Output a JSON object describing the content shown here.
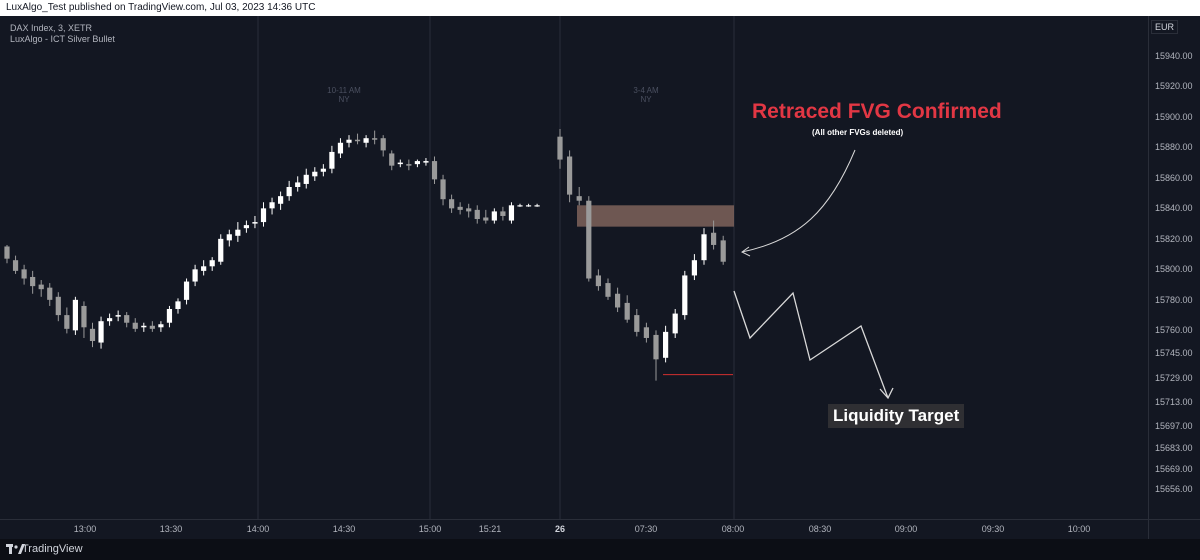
{
  "header": {
    "published_text": "LuxAlgo_Test published on TradingView.com, Jul 03, 2023 14:36 UTC"
  },
  "legend": {
    "symbol": "DAX Index, 3, XETR",
    "indicator": "LuxAlgo - ICT Silver Bullet"
  },
  "sessions": [
    {
      "time": "10-11 AM",
      "zone": "NY"
    },
    {
      "time": "3-4 AM",
      "zone": "NY"
    }
  ],
  "price_axis": {
    "currency": "EUR",
    "labels": [
      "15940.00",
      "15920.00",
      "15900.00",
      "15880.00",
      "15860.00",
      "15840.00",
      "15820.00",
      "15800.00",
      "15780.00",
      "15760.00",
      "15745.00",
      "15729.00",
      "15713.00",
      "15697.00",
      "15683.00",
      "15669.00",
      "15656.00"
    ]
  },
  "time_axis": {
    "labels": [
      "13:00",
      "13:30",
      "14:00",
      "14:30",
      "15:00",
      "15:21",
      "26",
      "07:30",
      "08:00",
      "08:30",
      "09:00",
      "09:30",
      "10:00"
    ],
    "bold_label": "26"
  },
  "annotations": {
    "fvg_title": "Retraced FVG Confirmed",
    "fvg_subtitle": "(All other FVGs deleted)",
    "liquidity_target": "Liquidity Target"
  },
  "footer": {
    "brand": "TradingView"
  },
  "colors": {
    "background": "#131722",
    "bull_candle": "#ffffff",
    "bear_candle": "#9a9a9a",
    "fvg_box": "#8d6e63",
    "fvg_title": "#e23744",
    "liquidity_line": "#d32f2f"
  },
  "chart_data": {
    "type": "candlestick",
    "price_range": [
      15648,
      15960
    ],
    "candles": [
      {
        "o": 15801,
        "h": 15802,
        "c": 15793,
        "l": 15790
      },
      {
        "o": 15792,
        "h": 15795,
        "c": 15785,
        "l": 15783
      },
      {
        "o": 15786,
        "h": 15789,
        "c": 15780,
        "l": 15776
      },
      {
        "o": 15781,
        "h": 15785,
        "c": 15775,
        "l": 15770
      },
      {
        "o": 15776,
        "h": 15779,
        "c": 15773,
        "l": 15768
      },
      {
        "o": 15774,
        "h": 15777,
        "c": 15766,
        "l": 15762
      },
      {
        "o": 15768,
        "h": 15771,
        "c": 15756,
        "l": 15752
      },
      {
        "o": 15756,
        "h": 15761,
        "c": 15747,
        "l": 15744
      },
      {
        "o": 15746,
        "h": 15768,
        "c": 15766,
        "l": 15743
      },
      {
        "o": 15762,
        "h": 15765,
        "c": 15748,
        "l": 15741
      },
      {
        "o": 15747,
        "h": 15751,
        "c": 15739,
        "l": 15735
      },
      {
        "o": 15738,
        "h": 15755,
        "c": 15752,
        "l": 15734
      },
      {
        "o": 15752,
        "h": 15757,
        "c": 15754,
        "l": 15749
      },
      {
        "o": 15755,
        "h": 15759,
        "c": 15756,
        "l": 15752
      },
      {
        "o": 15756,
        "h": 15758,
        "c": 15751,
        "l": 15748
      },
      {
        "o": 15751,
        "h": 15754,
        "c": 15747,
        "l": 15745
      },
      {
        "o": 15748,
        "h": 15751,
        "c": 15749,
        "l": 15745
      },
      {
        "o": 15749,
        "h": 15752,
        "c": 15747,
        "l": 15745
      },
      {
        "o": 15748,
        "h": 15752,
        "c": 15750,
        "l": 15745
      },
      {
        "o": 15751,
        "h": 15762,
        "c": 15760,
        "l": 15748
      },
      {
        "o": 15760,
        "h": 15767,
        "c": 15765,
        "l": 15757
      },
      {
        "o": 15766,
        "h": 15780,
        "c": 15778,
        "l": 15763
      },
      {
        "o": 15778,
        "h": 15789,
        "c": 15786,
        "l": 15775
      },
      {
        "o": 15785,
        "h": 15792,
        "c": 15788,
        "l": 15782
      },
      {
        "o": 15788,
        "h": 15794,
        "c": 15792,
        "l": 15785
      },
      {
        "o": 15791,
        "h": 15809,
        "c": 15806,
        "l": 15789
      },
      {
        "o": 15805,
        "h": 15812,
        "c": 15809,
        "l": 15801
      },
      {
        "o": 15808,
        "h": 15817,
        "c": 15812,
        "l": 15804
      },
      {
        "o": 15813,
        "h": 15818,
        "c": 15815,
        "l": 15810
      },
      {
        "o": 15816,
        "h": 15821,
        "c": 15817,
        "l": 15813
      },
      {
        "o": 15817,
        "h": 15830,
        "c": 15826,
        "l": 15814
      },
      {
        "o": 15826,
        "h": 15833,
        "c": 15830,
        "l": 15822
      },
      {
        "o": 15829,
        "h": 15837,
        "c": 15834,
        "l": 15825
      },
      {
        "o": 15834,
        "h": 15844,
        "c": 15840,
        "l": 15831
      },
      {
        "o": 15840,
        "h": 15847,
        "c": 15843,
        "l": 15837
      },
      {
        "o": 15842,
        "h": 15852,
        "c": 15848,
        "l": 15839
      },
      {
        "o": 15847,
        "h": 15853,
        "c": 15850,
        "l": 15844
      },
      {
        "o": 15850,
        "h": 15855,
        "c": 15852,
        "l": 15847
      },
      {
        "o": 15852,
        "h": 15867,
        "c": 15863,
        "l": 15849
      },
      {
        "o": 15862,
        "h": 15872,
        "c": 15869,
        "l": 15859
      },
      {
        "o": 15869,
        "h": 15874,
        "c": 15871,
        "l": 15866
      },
      {
        "o": 15871,
        "h": 15875,
        "c": 15870,
        "l": 15868
      },
      {
        "o": 15869,
        "h": 15874,
        "c": 15872,
        "l": 15866
      },
      {
        "o": 15872,
        "h": 15877,
        "c": 15871,
        "l": 15868
      },
      {
        "o": 15872,
        "h": 15874,
        "c": 15864,
        "l": 15860
      },
      {
        "o": 15862,
        "h": 15864,
        "c": 15854,
        "l": 15851
      },
      {
        "o": 15855,
        "h": 15858,
        "c": 15856,
        "l": 15853
      },
      {
        "o": 15855,
        "h": 15858,
        "c": 15854,
        "l": 15851
      },
      {
        "o": 15855,
        "h": 15858,
        "c": 15857,
        "l": 15853
      },
      {
        "o": 15856,
        "h": 15859,
        "c": 15857,
        "l": 15854
      },
      {
        "o": 15857,
        "h": 15860,
        "c": 15845,
        "l": 15842
      },
      {
        "o": 15845,
        "h": 15848,
        "c": 15832,
        "l": 15828
      },
      {
        "o": 15832,
        "h": 15835,
        "c": 15826,
        "l": 15823
      },
      {
        "o": 15827,
        "h": 15830,
        "c": 15825,
        "l": 15822
      },
      {
        "o": 15826,
        "h": 15829,
        "c": 15824,
        "l": 15820
      },
      {
        "o": 15825,
        "h": 15828,
        "c": 15819,
        "l": 15816
      },
      {
        "o": 15820,
        "h": 15825,
        "c": 15818,
        "l": 15816
      },
      {
        "o": 15818,
        "h": 15826,
        "c": 15824,
        "l": 15816
      },
      {
        "o": 15824,
        "h": 15827,
        "c": 15821,
        "l": 15818
      },
      {
        "o": 15818,
        "h": 15830,
        "c": 15828,
        "l": 15816
      },
      {
        "o": 15828,
        "h": 15829,
        "c": 15828,
        "l": 15827
      },
      {
        "o": 15828,
        "h": 15829,
        "c": 15828,
        "l": 15827
      },
      {
        "o": 15828,
        "h": 15829,
        "c": 15828,
        "l": 15827
      },
      {
        "o": 15873,
        "h": 15878,
        "c": 15858,
        "l": 15852
      },
      {
        "o": 15860,
        "h": 15864,
        "c": 15835,
        "l": 15830
      },
      {
        "o": 15834,
        "h": 15840,
        "c": 15831,
        "l": 15828
      },
      {
        "o": 15831,
        "h": 15834,
        "c": 15780,
        "l": 15778
      },
      {
        "o": 15782,
        "h": 15786,
        "c": 15775,
        "l": 15772
      },
      {
        "o": 15777,
        "h": 15780,
        "c": 15768,
        "l": 15766
      },
      {
        "o": 15770,
        "h": 15774,
        "c": 15761,
        "l": 15758
      },
      {
        "o": 15764,
        "h": 15769,
        "c": 15753,
        "l": 15751
      },
      {
        "o": 15756,
        "h": 15760,
        "c": 15745,
        "l": 15742
      },
      {
        "o": 15748,
        "h": 15751,
        "c": 15741,
        "l": 15738
      },
      {
        "o": 15743,
        "h": 15746,
        "c": 15727,
        "l": 15713
      },
      {
        "o": 15728,
        "h": 15749,
        "c": 15745,
        "l": 15725
      },
      {
        "o": 15744,
        "h": 15760,
        "c": 15757,
        "l": 15741
      },
      {
        "o": 15756,
        "h": 15785,
        "c": 15782,
        "l": 15753
      },
      {
        "o": 15782,
        "h": 15796,
        "c": 15792,
        "l": 15779
      },
      {
        "o": 15792,
        "h": 15813,
        "c": 15809,
        "l": 15789
      },
      {
        "o": 15810,
        "h": 15818,
        "c": 15802,
        "l": 15799
      },
      {
        "o": 15805,
        "h": 15808,
        "c": 15791,
        "l": 15789
      }
    ],
    "fvg_zone": {
      "top": 15828,
      "bottom": 15814
    },
    "liquidity_level": 15717
  }
}
